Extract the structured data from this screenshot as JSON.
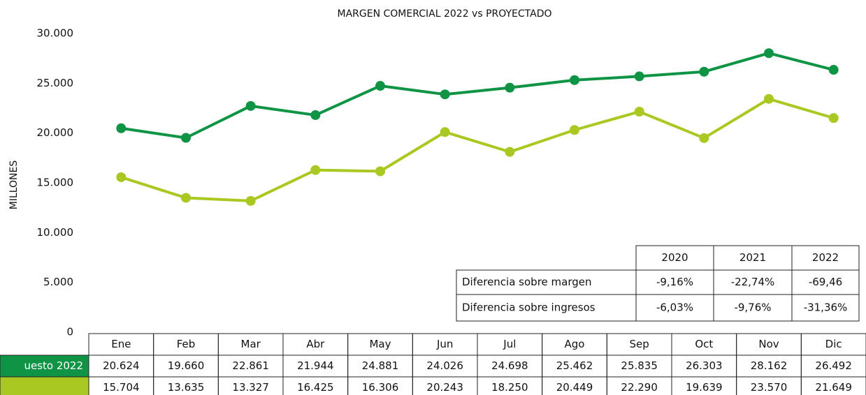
{
  "chart_data": {
    "type": "line",
    "title": "MARGEN COMERCIAL 2022 vs PROYECTADO",
    "y_label": "MILLONES",
    "categories": [
      "Ene",
      "Feb",
      "Mar",
      "Abr",
      "May",
      "Jun",
      "Jul",
      "Ago",
      "Sep",
      "Oct",
      "Nov",
      "Dic"
    ],
    "series": [
      {
        "name": "uesto 2022",
        "color": "#0f9446",
        "values": [
          20624,
          19660,
          22861,
          21944,
          24881,
          24026,
          24698,
          25462,
          25835,
          26303,
          28162,
          26492
        ],
        "value_labels": [
          "20.624",
          "19.660",
          "22.861",
          "21.944",
          "24.881",
          "24.026",
          "24.698",
          "25.462",
          "25.835",
          "26.303",
          "28.162",
          "26.492"
        ]
      },
      {
        "name": null,
        "color": "#a9c821",
        "values": [
          15704,
          13635,
          13327,
          16425,
          16306,
          20243,
          18250,
          20449,
          22290,
          19639,
          23570,
          21649
        ],
        "value_labels": [
          "15.704",
          "13.635",
          "13.327",
          "16.425",
          "16.306",
          "20.243",
          "18.250",
          "20.449",
          "22.290",
          "19.639",
          "23.570",
          "21.649"
        ]
      }
    ],
    "ylim": [
      0,
      30000
    ],
    "yticks": [
      0,
      {
        "value": 5000,
        "label": "5.000"
      },
      {
        "value": 10000,
        "label": "10.000"
      },
      {
        "value": 15000,
        "label": "15.000"
      },
      {
        "value": 20000,
        "label": "20.000"
      },
      {
        "value": 25000,
        "label": "25.000"
      },
      {
        "value": 30000,
        "label": "30.000"
      }
    ],
    "grid": false
  },
  "summary_table": {
    "header": [
      "2020",
      "2021",
      "2022"
    ],
    "rows": [
      {
        "label": "Diferencia sobre margen",
        "cells": [
          "-9,16%",
          "-22,74%",
          "-69,46"
        ]
      },
      {
        "label": "Diferencia sobre ingresos",
        "cells": [
          "-6,03%",
          "-9,76%",
          "-31,36%"
        ]
      }
    ]
  }
}
